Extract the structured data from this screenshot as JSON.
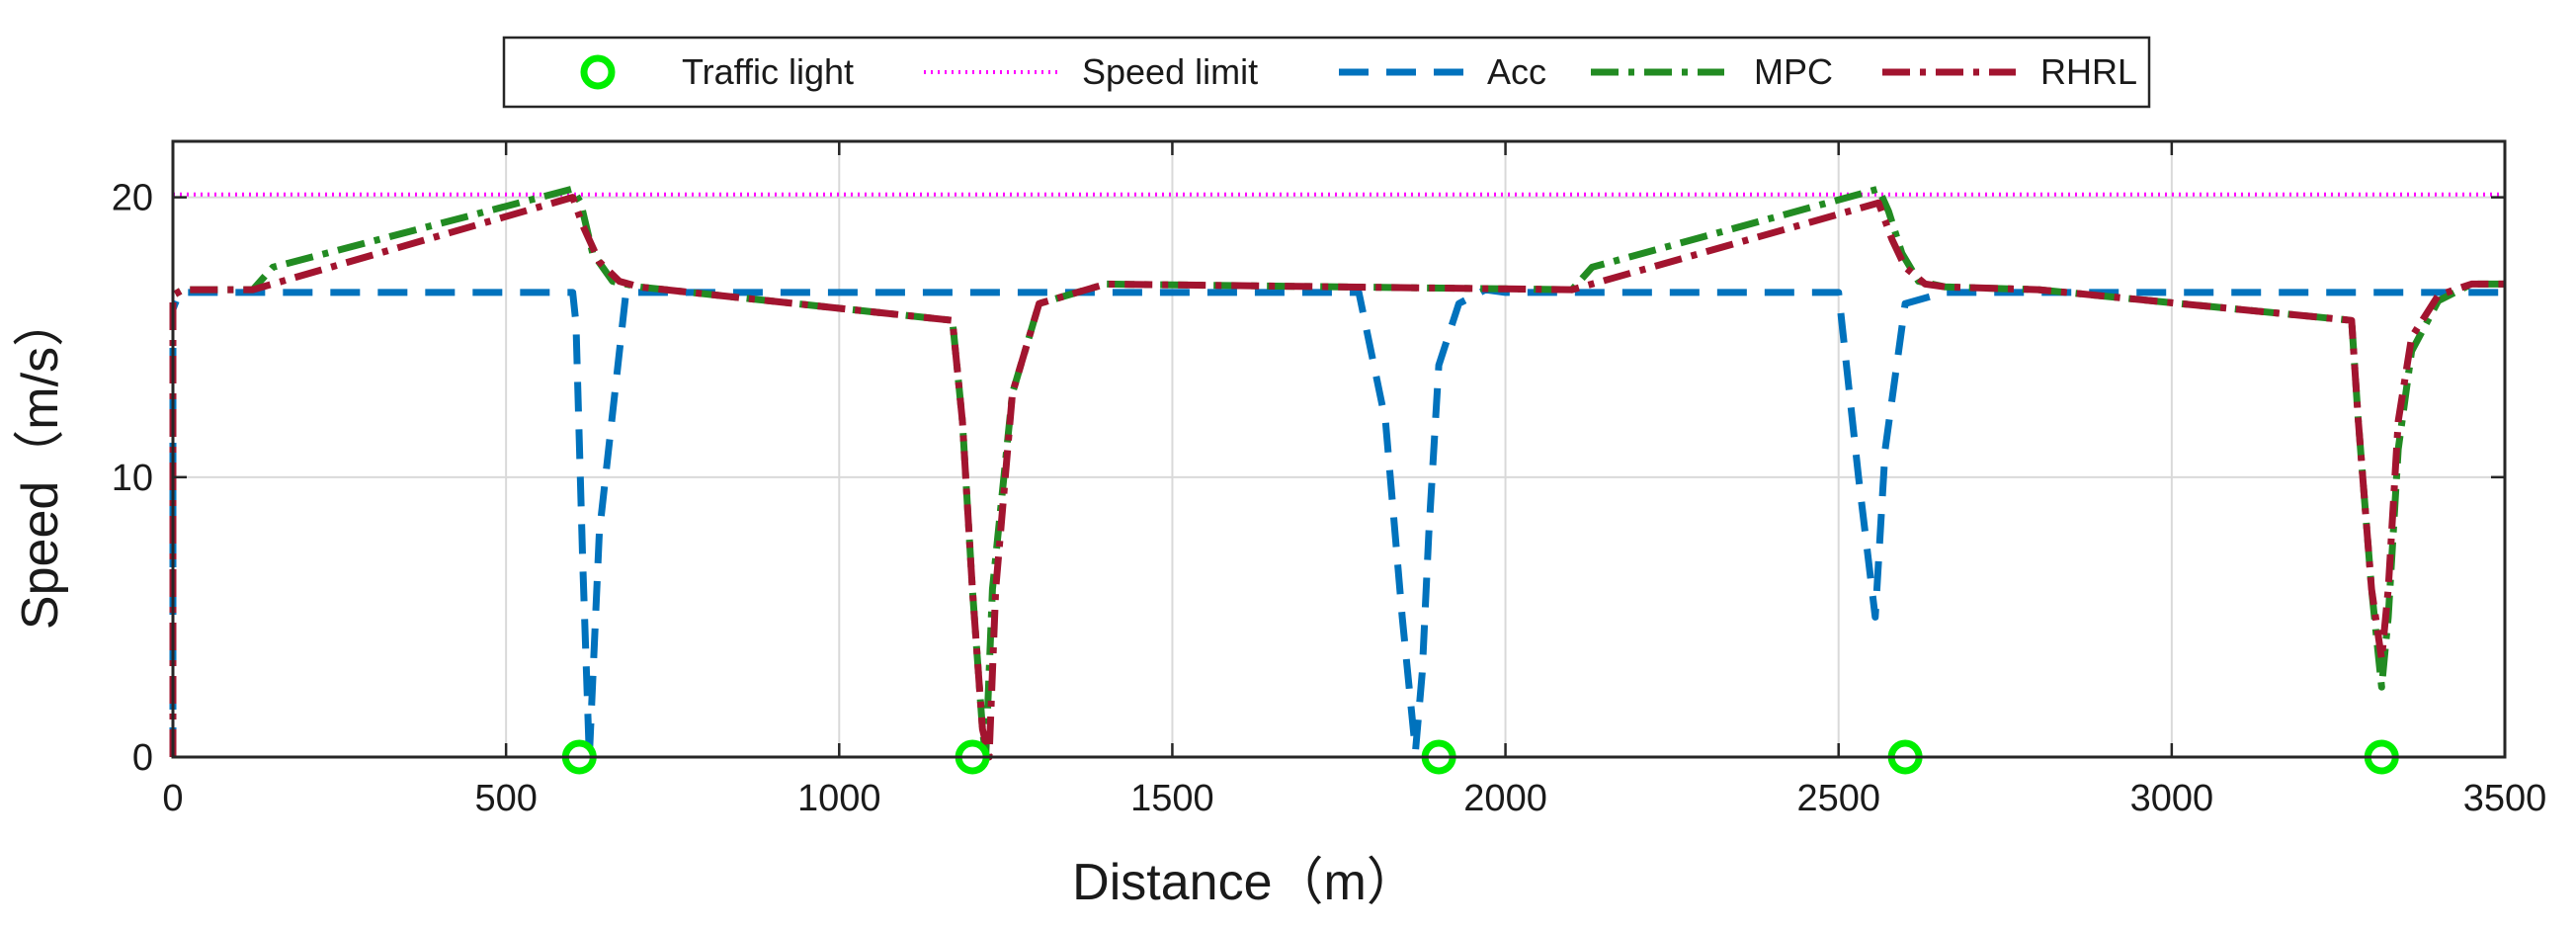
{
  "chart_data": {
    "type": "line",
    "xlabel": "Distance（m）",
    "ylabel": "Speed（m/s）",
    "xlim": [
      0,
      3500
    ],
    "ylim": [
      0,
      22
    ],
    "xticks": [
      0,
      500,
      1000,
      1500,
      2000,
      2500,
      3000,
      3500
    ],
    "xtick_labels": [
      "0",
      "500",
      "1000",
      "1500",
      "2000",
      "2500",
      "3000",
      "3500"
    ],
    "yticks": [
      0,
      10,
      20
    ],
    "ytick_labels": [
      "0",
      "10",
      "20"
    ],
    "grid": true,
    "legend_position": "top-center",
    "series": [
      {
        "name": "Traffic light",
        "style": "marker-circle",
        "color": "#00ee00",
        "x": [
          610,
          1200,
          1900,
          2600,
          3315
        ],
        "y": [
          0,
          0,
          0,
          0,
          0
        ]
      },
      {
        "name": "Speed limit",
        "style": "dotted",
        "color": "#ff00ff",
        "x": [
          0,
          3500
        ],
        "y": [
          20.1,
          20.1
        ]
      },
      {
        "name": "Acc",
        "style": "dashed",
        "color": "#0072bd",
        "x": [
          0,
          0,
          10,
          600,
          605,
          615,
          625,
          640,
          680,
          1780,
          1820,
          1845,
          1865,
          1875,
          1885,
          1900,
          1930,
          1970,
          2000,
          2500,
          2530,
          2555,
          2570,
          2600,
          2660,
          3500
        ],
        "y": [
          0,
          16,
          16.6,
          16.6,
          15.5,
          7,
          0,
          8,
          16.6,
          16.6,
          12,
          5,
          0.2,
          3,
          8,
          14,
          16.2,
          16.7,
          16.6,
          16.6,
          10,
          5,
          11,
          16.2,
          16.6,
          16.6
        ]
      },
      {
        "name": "MPC",
        "style": "dashdot",
        "color": "#228b22",
        "x": [
          0,
          0,
          15,
          120,
          150,
          600,
          612,
          630,
          660,
          700,
          1170,
          1185,
          1200,
          1215,
          1220,
          1230,
          1260,
          1300,
          1400,
          2100,
          2130,
          2560,
          2575,
          2595,
          2620,
          2660,
          2800,
          3270,
          3280,
          3300,
          3315,
          3325,
          3340,
          3360,
          3400,
          3450,
          3500
        ],
        "y": [
          0,
          16.5,
          16.7,
          16.7,
          17.5,
          20.3,
          19.8,
          18,
          17,
          16.8,
          15.6,
          12,
          6,
          1,
          0,
          6,
          13,
          16.2,
          16.9,
          16.7,
          17.5,
          20.3,
          19.5,
          18,
          17,
          16.8,
          16.7,
          15.6,
          12,
          6,
          2.5,
          5,
          11,
          14.5,
          16.3,
          16.9,
          16.9
        ]
      },
      {
        "name": "RHRL",
        "style": "dashdot",
        "color": "#a2142f",
        "x": [
          0,
          0,
          15,
          120,
          600,
          615,
          640,
          670,
          700,
          1170,
          1185,
          1200,
          1215,
          1225,
          1235,
          1260,
          1300,
          1400,
          2100,
          2560,
          2580,
          2600,
          2630,
          2660,
          2800,
          3270,
          3280,
          3300,
          3315,
          3325,
          3340,
          3360,
          3400,
          3450,
          3500
        ],
        "y": [
          0,
          16.5,
          16.7,
          16.7,
          20.0,
          19.0,
          17.7,
          17,
          16.8,
          15.6,
          12,
          6,
          1,
          0,
          6,
          13,
          16.2,
          16.9,
          16.7,
          19.8,
          18.5,
          17.5,
          16.9,
          16.8,
          16.7,
          15.6,
          12,
          6,
          3.5,
          6,
          12,
          15,
          16.5,
          16.9,
          16.9
        ]
      }
    ]
  }
}
